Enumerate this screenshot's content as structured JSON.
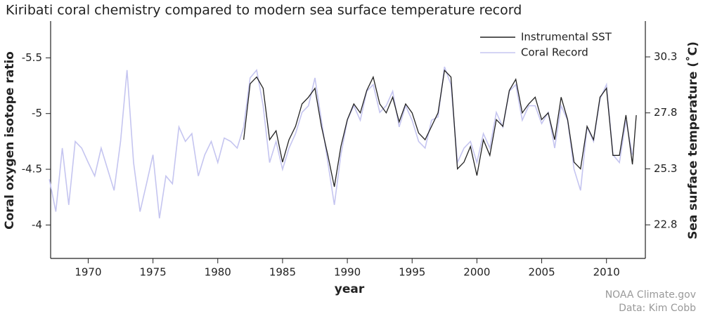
{
  "chart_data": {
    "type": "line",
    "title": "Kiribati coral chemistry compared to modern sea surface temperature record",
    "xlabel": "year",
    "ylabel": "Coral oxygen isotope ratio",
    "y2label": "Sea surface temperature (˚C)",
    "annotations": [
      "NOAA Climate.gov",
      "Data: Kim Cobb"
    ],
    "legend": "upper right",
    "xlim": [
      1967.1,
      2013
    ],
    "xticks": [
      1970,
      1975,
      1980,
      1985,
      1990,
      1995,
      2000,
      2005,
      2010
    ],
    "ylim": [
      -3.7,
      -5.83
    ],
    "yticks": [
      -5.5,
      -5,
      -4.5,
      -4
    ],
    "y2lim": [
      21.3,
      31.9
    ],
    "y2ticks": [
      22.8,
      25.3,
      27.8,
      30.3
    ],
    "series": [
      {
        "name": "Coral Record",
        "color": "#c5c5f0",
        "x": [
          1967,
          1967.5,
          1968,
          1968.5,
          1969,
          1969.5,
          1970,
          1970.5,
          1971,
          1971.5,
          1972,
          1972.5,
          1973,
          1973.5,
          1974,
          1974.5,
          1975,
          1975.5,
          1976,
          1976.5,
          1977,
          1977.5,
          1978,
          1978.5,
          1979,
          1979.5,
          1980,
          1980.5,
          1981,
          1981.5,
          1982,
          1982.5,
          1983,
          1983.5,
          1984,
          1984.5,
          1985,
          1985.5,
          1986,
          1986.5,
          1987,
          1987.5,
          1988,
          1988.5,
          1989,
          1989.5,
          1990,
          1990.5,
          1991,
          1991.5,
          1992,
          1992.5,
          1993,
          1993.5,
          1994,
          1994.5,
          1995,
          1995.5,
          1996,
          1996.5,
          1997,
          1997.5,
          1998,
          1998.5,
          1999,
          1999.5,
          2000,
          2000.5,
          2001,
          2001.5,
          2002,
          2002.5,
          2003,
          2003.5,
          2004,
          2004.5,
          2005,
          2005.5,
          2006,
          2006.5,
          2007,
          2007.5,
          2008,
          2008.5,
          2009,
          2009.5,
          2010,
          2010.5,
          2011,
          2011.5,
          2012
        ],
        "values": [
          -4.41,
          -4.12,
          -4.69,
          -4.18,
          -4.75,
          -4.69,
          -4.56,
          -4.44,
          -4.69,
          -4.5,
          -4.31,
          -4.75,
          -5.39,
          -4.56,
          -4.12,
          -4.37,
          -4.63,
          -4.06,
          -4.44,
          -4.37,
          -4.88,
          -4.75,
          -4.82,
          -4.44,
          -4.63,
          -4.75,
          -4.56,
          -4.78,
          -4.75,
          -4.69,
          -4.88,
          -5.32,
          -5.39,
          -5.07,
          -4.56,
          -4.75,
          -4.5,
          -4.69,
          -4.82,
          -5.01,
          -5.07,
          -5.32,
          -4.94,
          -4.56,
          -4.18,
          -4.63,
          -4.94,
          -5.07,
          -4.94,
          -5.2,
          -5.26,
          -5.01,
          -5.07,
          -5.2,
          -4.88,
          -5.07,
          -4.94,
          -4.75,
          -4.69,
          -4.94,
          -4.97,
          -5.42,
          -5.26,
          -4.56,
          -4.69,
          -4.75,
          -4.56,
          -4.82,
          -4.69,
          -5.01,
          -4.88,
          -5.2,
          -5.26,
          -4.94,
          -5.07,
          -5.07,
          -4.91,
          -5.01,
          -4.69,
          -5.07,
          -4.94,
          -4.5,
          -4.31,
          -4.88,
          -4.75,
          -5.13,
          -5.26,
          -4.63,
          -4.56,
          -4.94,
          -4.63
        ]
      },
      {
        "name": "Instrumental SST",
        "color": "#222222",
        "axis": "y2",
        "x": [
          1982,
          1982.5,
          1983,
          1983.5,
          1984,
          1984.5,
          1985,
          1985.5,
          1986,
          1986.5,
          1987,
          1987.5,
          1988,
          1988.5,
          1989,
          1989.5,
          1990,
          1990.5,
          1991,
          1991.5,
          1992,
          1992.5,
          1993,
          1993.5,
          1994,
          1994.5,
          1995,
          1995.5,
          1996,
          1996.5,
          1997,
          1997.5,
          1998,
          1998.5,
          1999,
          1999.5,
          2000,
          2000.5,
          2001,
          2001.5,
          2002,
          2002.5,
          2003,
          2003.5,
          2004,
          2004.5,
          2005,
          2005.5,
          2006,
          2006.5,
          2007,
          2007.5,
          2008,
          2008.5,
          2009,
          2009.5,
          2010,
          2010.5,
          2011,
          2011.5,
          2012,
          2012.3
        ],
        "values": [
          26.6,
          29.1,
          29.4,
          28.9,
          26.6,
          27.0,
          25.6,
          26.6,
          27.2,
          28.2,
          28.5,
          28.9,
          27.2,
          25.9,
          24.5,
          26.3,
          27.5,
          28.2,
          27.8,
          28.8,
          29.4,
          28.2,
          27.8,
          28.5,
          27.4,
          28.2,
          27.8,
          26.9,
          26.6,
          27.2,
          27.8,
          29.7,
          29.4,
          25.3,
          25.6,
          26.3,
          25.0,
          26.6,
          25.9,
          27.5,
          27.2,
          28.8,
          29.3,
          27.8,
          28.2,
          28.5,
          27.5,
          27.8,
          26.6,
          28.5,
          27.5,
          25.6,
          25.3,
          27.2,
          26.6,
          28.5,
          28.9,
          25.9,
          25.9,
          27.7,
          25.5,
          27.7
        ]
      }
    ]
  }
}
